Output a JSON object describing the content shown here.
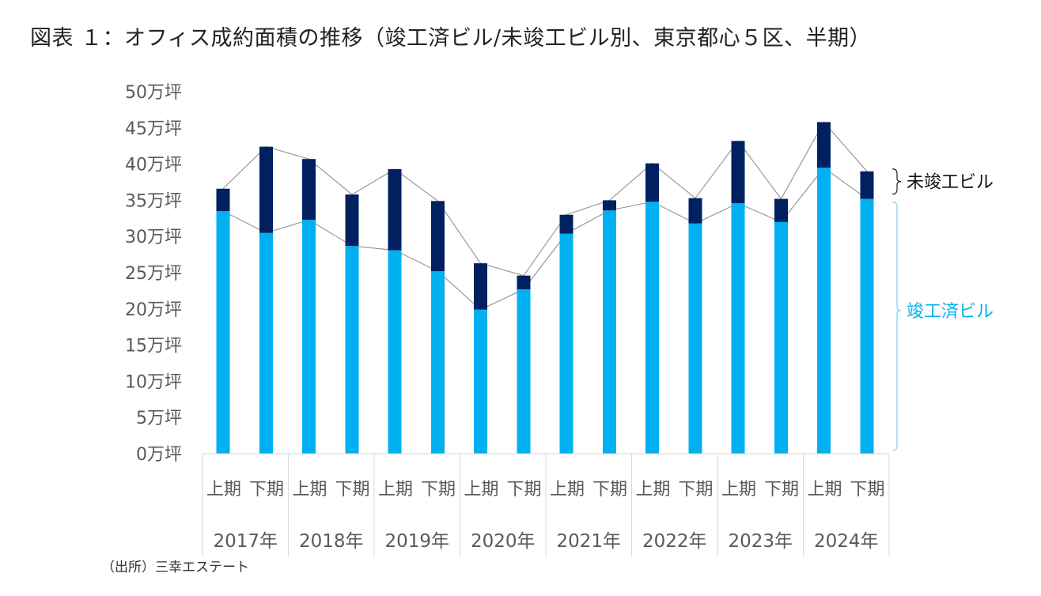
{
  "title": "図表 １：オフィス成約面積の推移（竣工済ビル/未竣工ビル別、東京都心５区、半期）",
  "source": "（出所）三幸エステート",
  "chart_data": {
    "type": "bar",
    "stacked": true,
    "unit": "万坪",
    "ylim": [
      0,
      50
    ],
    "yticks": [
      0,
      5,
      10,
      15,
      20,
      25,
      30,
      35,
      40,
      45,
      50
    ],
    "ytick_labels": [
      "0万坪",
      "5万坪",
      "10万坪",
      "15万坪",
      "20万坪",
      "25万坪",
      "30万坪",
      "35万坪",
      "40万坪",
      "45万坪",
      "50万坪"
    ],
    "half_labels": [
      "上期",
      "下期"
    ],
    "years": [
      "2017年",
      "2018年",
      "2019年",
      "2020年",
      "2021年",
      "2022年",
      "2023年",
      "2024年"
    ],
    "series": [
      {
        "name": "竣工済ビル",
        "color": "#00b0f0",
        "values": [
          33.5,
          30.5,
          32.3,
          28.7,
          28.1,
          25.2,
          19.9,
          22.7,
          30.4,
          33.6,
          34.8,
          31.8,
          34.6,
          32.0,
          39.5,
          35.2
        ]
      },
      {
        "name": "未竣工ビル",
        "color": "#002060",
        "values": [
          3.1,
          11.9,
          8.4,
          7.1,
          11.2,
          9.7,
          6.4,
          1.9,
          2.6,
          1.4,
          5.3,
          3.5,
          8.6,
          3.2,
          6.3,
          3.8
        ]
      }
    ],
    "legend": {
      "unfinished": "未竣工ビル",
      "finished": "竣工済ビル"
    },
    "connector_color": "#999999",
    "grid": false
  }
}
